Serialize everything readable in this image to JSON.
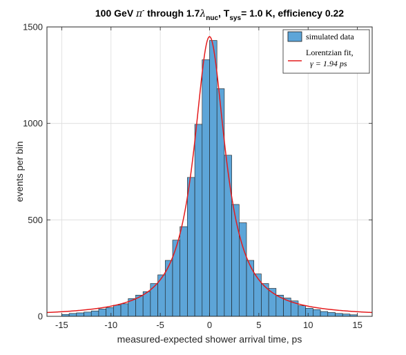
{
  "chart_data": {
    "type": "bar",
    "title": {
      "part1": "100 GeV ",
      "pi": "π",
      "pi_sup": "-",
      "part2": " through 1.7",
      "lambda": "λ",
      "lambda_sub": "nuc",
      "part3": ",  T",
      "t_sub": "sys",
      "part4": "= 1.0 K, efficiency 0.22"
    },
    "xlabel": "measured-expected shower arrival time, ps",
    "ylabel": "events per bin",
    "xlim": [
      -16.5,
      16.5
    ],
    "ylim": [
      0,
      1500
    ],
    "xticks": [
      -15,
      -10,
      -5,
      0,
      5,
      10,
      15
    ],
    "xtick_labels": [
      "-15",
      "-10",
      "-5",
      "0",
      "5",
      "10",
      "15"
    ],
    "yticks": [
      0,
      500,
      1000,
      1500
    ],
    "ytick_labels": [
      "0",
      "500",
      "1000",
      "1500"
    ],
    "grid": true,
    "bin_width": 0.75,
    "bin_centers": [
      -14.625,
      -13.875,
      -13.125,
      -12.375,
      -11.625,
      -10.875,
      -10.125,
      -9.375,
      -8.625,
      -7.875,
      -7.125,
      -6.375,
      -5.625,
      -4.875,
      -4.125,
      -3.375,
      -2.625,
      -1.875,
      -1.125,
      -0.375,
      0.375,
      1.125,
      1.875,
      2.625,
      3.375,
      4.125,
      4.875,
      5.625,
      6.375,
      7.125,
      7.875,
      8.625,
      9.375,
      10.125,
      10.875,
      11.625,
      12.375,
      13.125,
      13.875,
      14.625
    ],
    "series": [
      {
        "name": "simulated data",
        "color": "#5DA5D8",
        "edge_color": "#1a1a1a",
        "values": [
          10,
          15,
          18,
          22,
          28,
          38,
          45,
          58,
          65,
          92,
          110,
          128,
          170,
          215,
          290,
          395,
          465,
          720,
          995,
          1330,
          1430,
          1180,
          835,
          580,
          485,
          290,
          220,
          170,
          145,
          110,
          95,
          80,
          55,
          42,
          35,
          25,
          20,
          15,
          12,
          8
        ]
      }
    ],
    "fit": {
      "type": "lorentzian",
      "color": "#e41a1c",
      "amplitude": 1450,
      "center": 0.0,
      "gamma": 1.94
    },
    "legend": {
      "position": "top-right",
      "entries": [
        {
          "label": "simulated data"
        },
        {
          "label_line1": "Lorentzian fit,",
          "label_line2": "γ = 1.94 ps"
        }
      ]
    }
  }
}
